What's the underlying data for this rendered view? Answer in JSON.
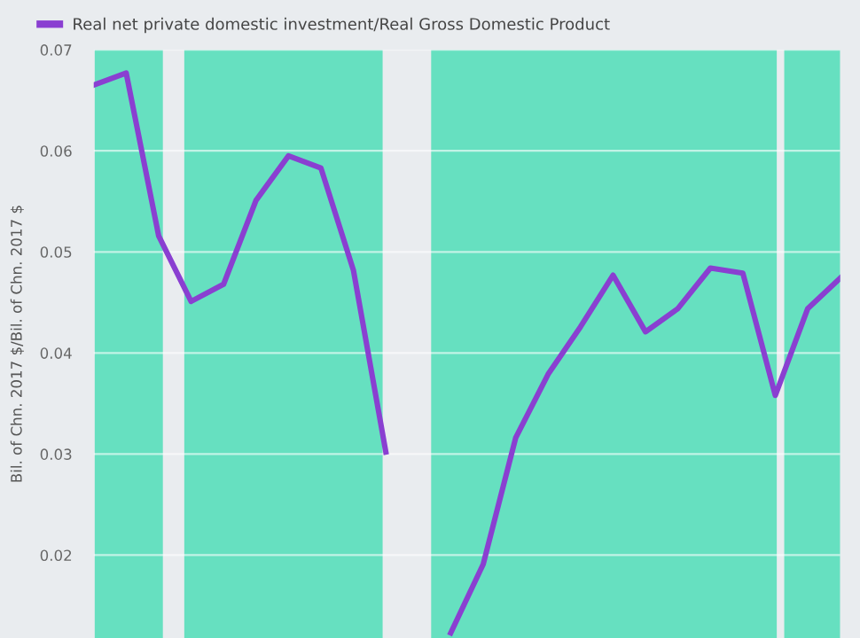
{
  "chart_data": {
    "type": "line",
    "ylabel": "Bil. of Chn. 2017 $/Bil. of Chn. 2017 $",
    "categories": [
      null,
      null,
      null,
      null,
      null,
      null,
      null,
      null,
      null,
      null,
      null,
      null,
      null,
      null,
      null,
      null,
      null,
      null,
      null,
      null,
      null,
      null,
      null,
      null
    ],
    "series": [
      {
        "name": "Real net private domestic investment/Real Gross Domestic Product",
        "color": "#8a3fd1",
        "values": [
          0.0665,
          0.0677,
          0.0516,
          0.0451,
          0.0468,
          0.0551,
          0.0595,
          0.0583,
          0.0482,
          0.0302,
          null,
          null,
          null,
          null,
          null,
          null,
          null,
          null,
          null,
          null,
          null,
          null,
          null,
          null
        ]
      },
      {
        "color": "#8a3fd1",
        "values": [
          null,
          null,
          null,
          null,
          null,
          null,
          null,
          null,
          null,
          null,
          null,
          0.0123,
          0.0191,
          0.0316,
          0.0379,
          0.0426,
          0.0477,
          0.0421,
          0.0444,
          0.0484,
          0.0479,
          0.0358,
          0.0444,
          0.0474
        ]
      }
    ],
    "ylim": [
      0.0118,
      0.07
    ],
    "yticks": [
      0.02,
      0.03,
      0.04,
      0.05,
      0.06,
      0.07
    ],
    "grid": "y",
    "legend": "top left",
    "line_style": "solid",
    "marker": "none"
  }
}
